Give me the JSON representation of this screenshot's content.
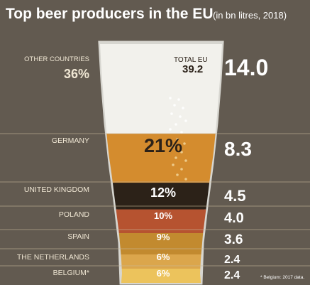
{
  "title": "Top beer producers in the EU",
  "subtitle": "(in bn litres, 2018)",
  "total_label": "TOTAL EU",
  "total_value": "39.2",
  "footnote": "* Belgium: 2017 data.",
  "colors": {
    "background": "#625a50",
    "foam": "#f2f1ec",
    "glass": "#d7d6d0",
    "divider": "#c9b99a",
    "white_text": "#ffffff",
    "label_text": "#efe6d3",
    "germany": "#d48c2e",
    "united_kingdom": "#2c2218",
    "poland": "#b65330",
    "spain": "#c28a2f",
    "netherlands": "#dba64c",
    "belgium": "#ecc35c"
  },
  "chart_data": {
    "type": "bar",
    "title": "Top beer producers in the EU",
    "subtitle": "(in bn litres, 2018)",
    "unit": "bn litres",
    "total": 39.2,
    "categories": [
      "OTHER COUNTRIES",
      "GERMANY",
      "UNITED KINGDOM",
      "POLAND",
      "SPAIN",
      "THE NETHERLANDS",
      "BELGIUM*"
    ],
    "values": [
      14.0,
      8.3,
      4.5,
      4.0,
      3.6,
      2.4,
      2.4
    ],
    "value_labels": [
      "14.0",
      "8.3",
      "4.5",
      "4.0",
      "3.6",
      "2.4",
      "2.4"
    ],
    "shares": [
      "36%",
      "21%",
      "12%",
      "10%",
      "9%",
      "6%",
      "6%"
    ]
  }
}
